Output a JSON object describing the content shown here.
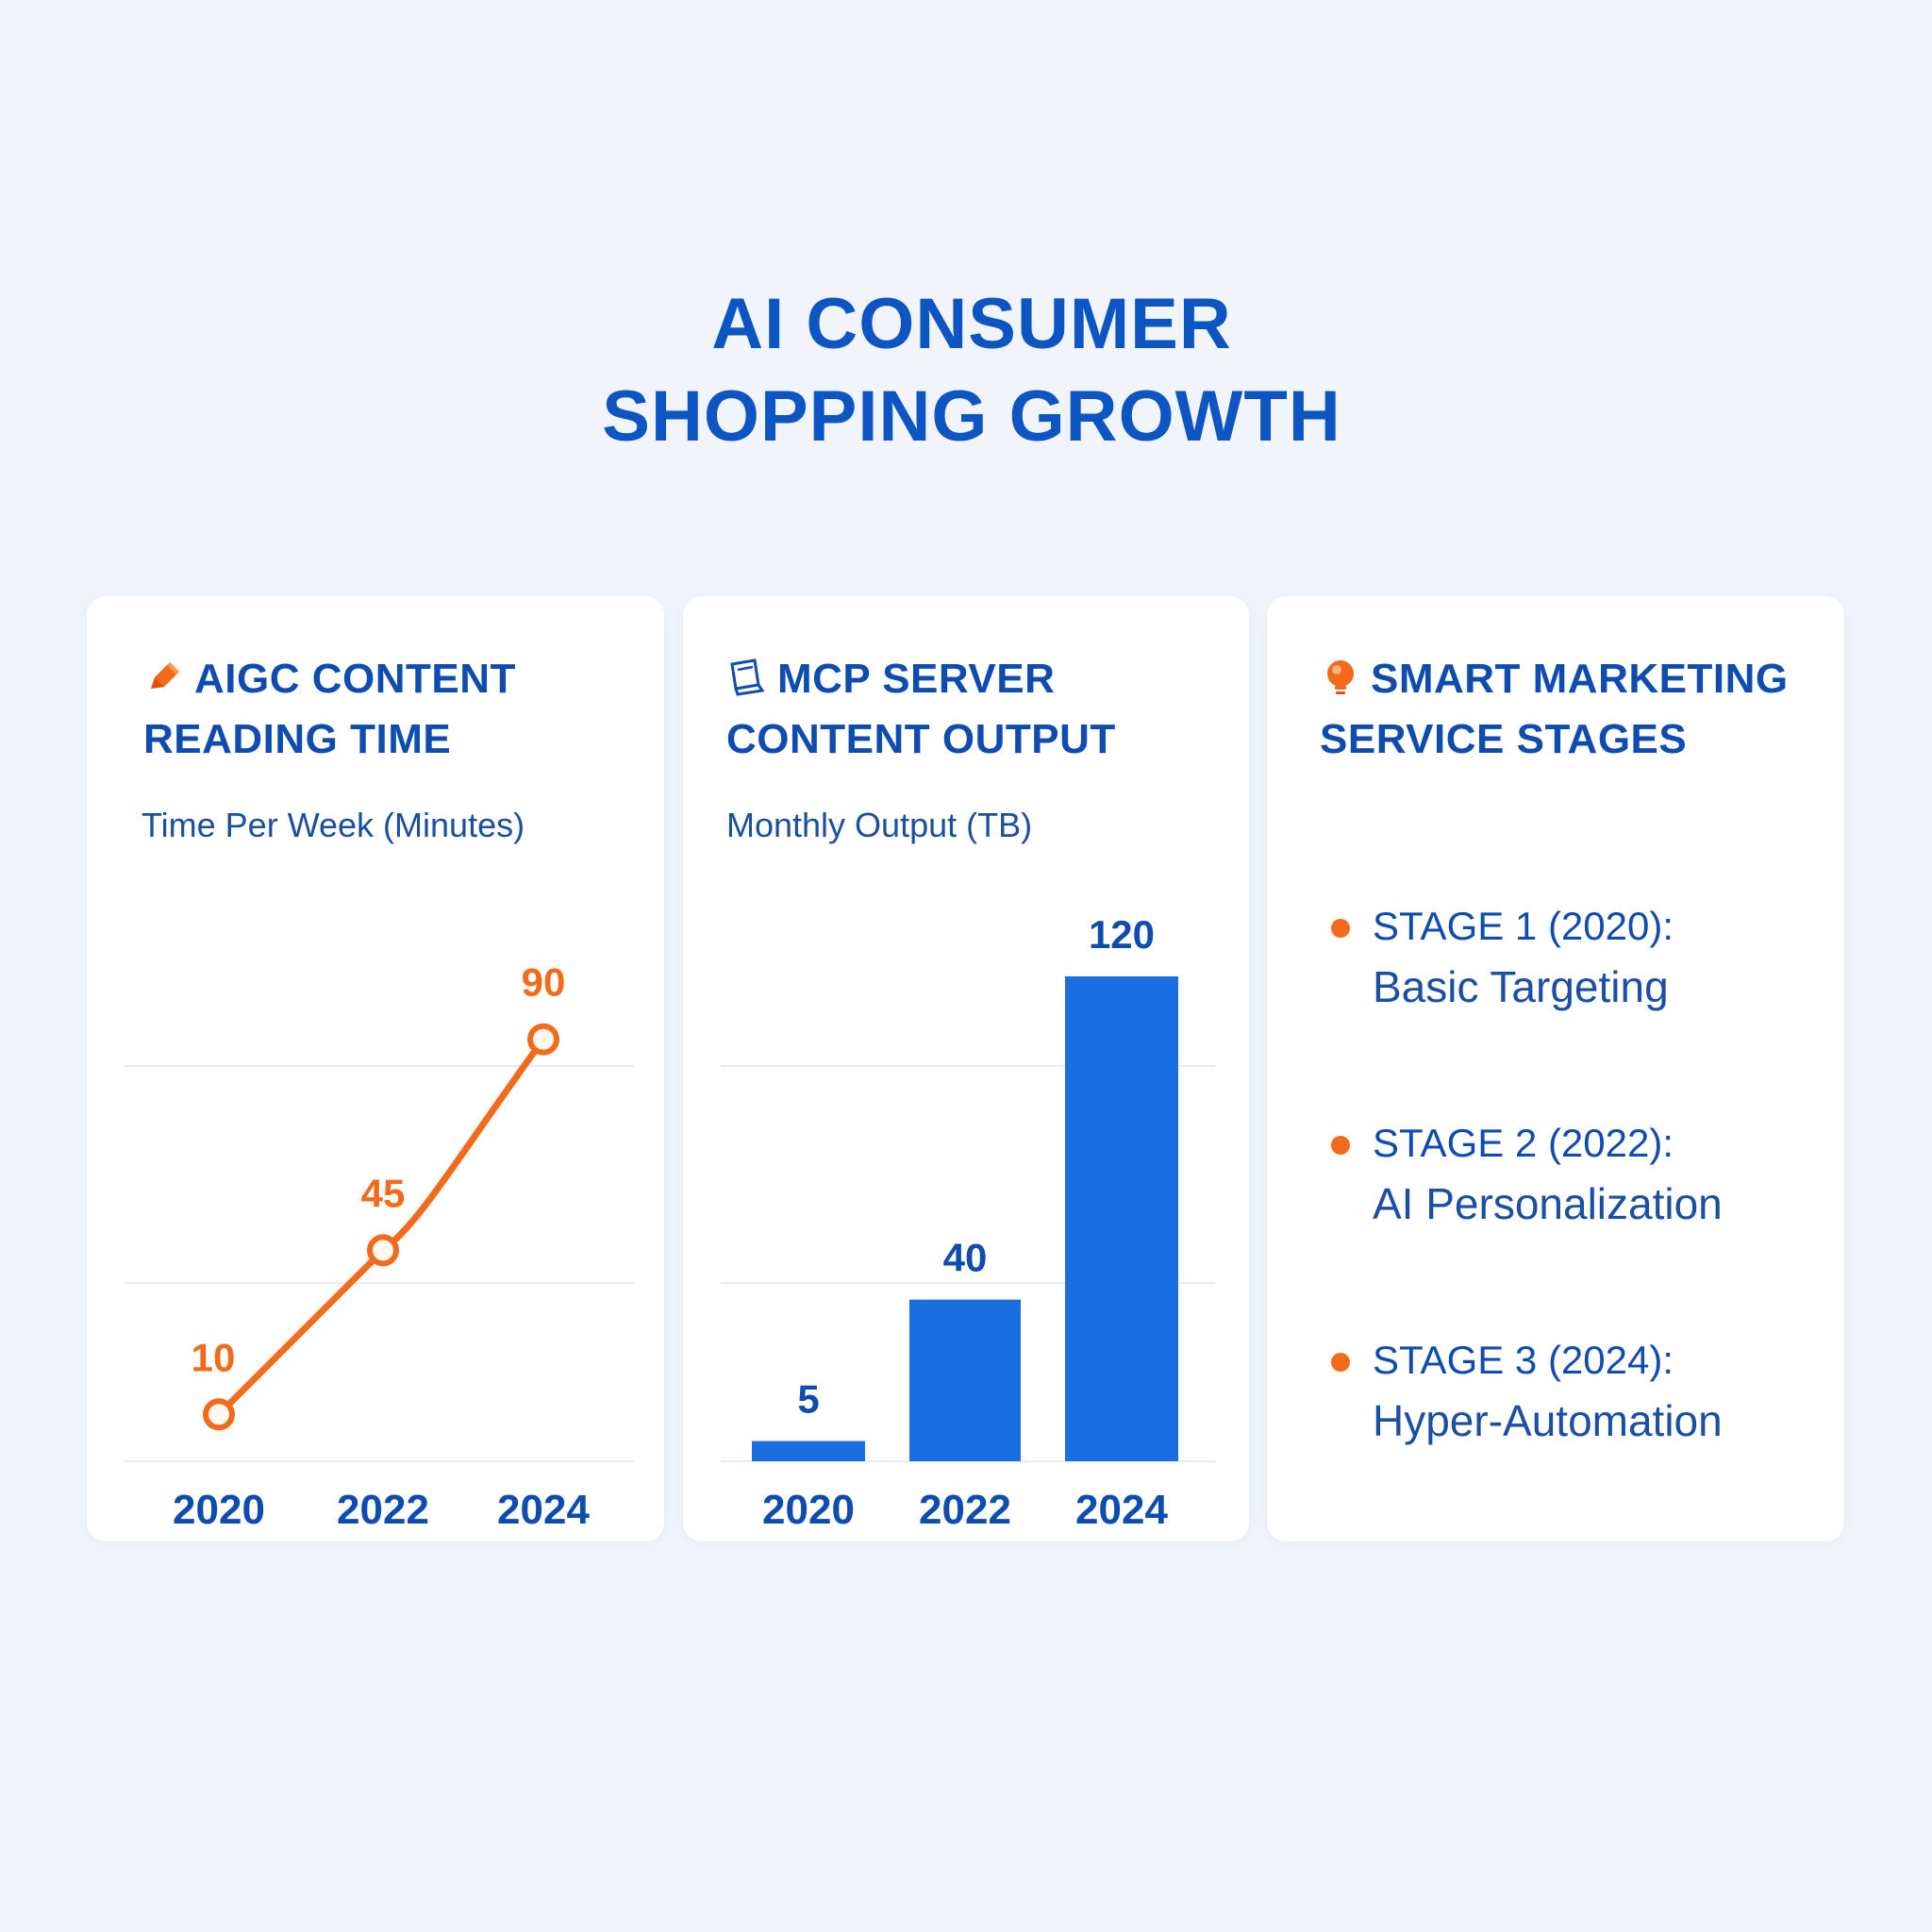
{
  "title": {
    "line1": "AI CONSUMER",
    "line2": "SHOPPING GROWTH"
  },
  "colors": {
    "accent_orange": "#f26a1b",
    "accent_blue": "#1a6fe0",
    "text_blue": "#0e4cb0"
  },
  "cards": [
    {
      "icon": "pencil-icon",
      "title_line1": "AIGC CONTENT",
      "title_line2": "READING TIME",
      "subtitle": "Time Per Week (Minutes)"
    },
    {
      "icon": "server-icon",
      "title_line1": "MCP SERVER",
      "title_line2": "CONTENT OUTPUT",
      "subtitle": "Monthly Output (TB)"
    },
    {
      "icon": "lightbulb-icon",
      "title_line1": "SMART MARKETING",
      "title_line2": "SERVICE STAGES",
      "stages": [
        {
          "label": "STAGE 1 (2020):",
          "desc": "Basic Targeting"
        },
        {
          "label": "STAGE 2 (2022):",
          "desc": "AI Personalization"
        },
        {
          "label": "STAGE 3 (2024):",
          "desc": "Hyper-Automation"
        }
      ]
    }
  ],
  "chart_data": [
    {
      "type": "line",
      "title": "AIGC CONTENT READING TIME",
      "ylabel": "Time Per Week (Minutes)",
      "categories": [
        "2020",
        "2022",
        "2024"
      ],
      "values": [
        10,
        45,
        90
      ],
      "data_labels": [
        "10",
        "45",
        "90"
      ],
      "color": "#f26a1b",
      "grid": true
    },
    {
      "type": "bar",
      "title": "MCP SERVER CONTENT OUTPUT",
      "ylabel": "Monthly Output (TB)",
      "categories": [
        "2020",
        "2022",
        "2024"
      ],
      "values": [
        5,
        40,
        120
      ],
      "data_labels": [
        "5",
        "40",
        "120"
      ],
      "color": "#1a6fe0",
      "grid": true
    }
  ]
}
